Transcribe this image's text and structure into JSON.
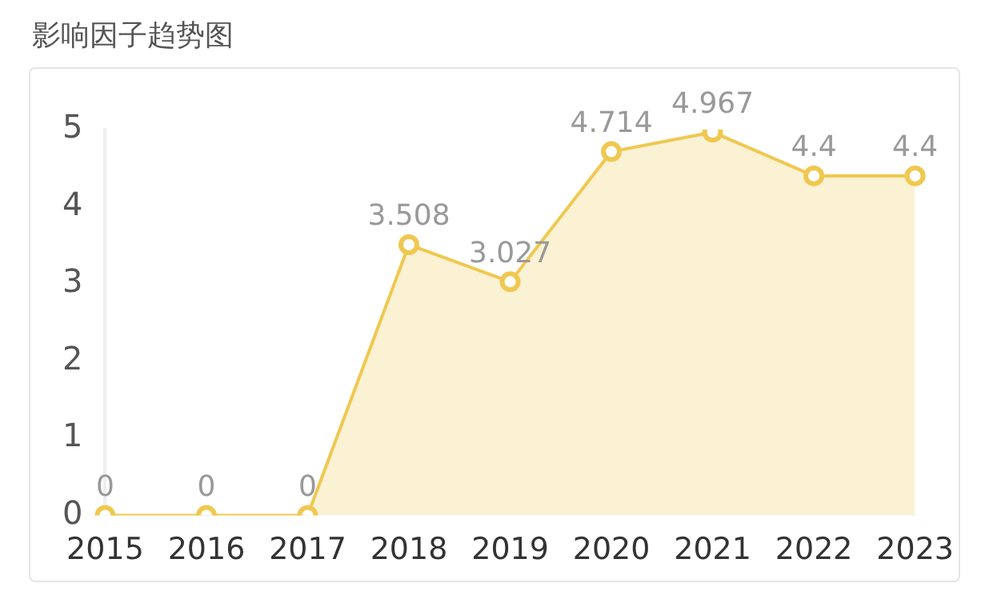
{
  "chart_data": {
    "type": "area",
    "title": "影响因子趋势图",
    "categories": [
      "2015",
      "2016",
      "2017",
      "2018",
      "2019",
      "2020",
      "2021",
      "2022",
      "2023"
    ],
    "series": [
      {
        "color": "#f0c850",
        "values": [
          0,
          0,
          0,
          3.508,
          3.027,
          4.714,
          4.967,
          4.4,
          4.4
        ]
      }
    ],
    "ylim": [
      0,
      5
    ],
    "yticks": [
      0,
      1,
      2,
      3,
      4,
      5
    ],
    "grid": false,
    "legend": false,
    "marker": "circle",
    "data_labels": true
  }
}
